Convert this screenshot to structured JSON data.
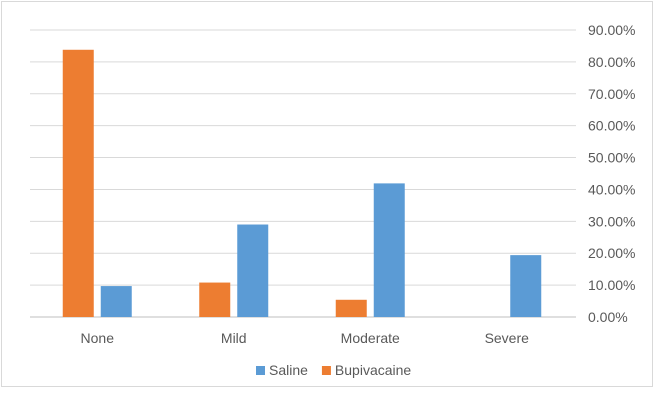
{
  "chart_data": {
    "type": "bar",
    "categories": [
      "None",
      "Mild",
      "Moderate",
      "Severe"
    ],
    "series": [
      {
        "name": "Saline",
        "color": "#5b9bd5",
        "values": [
          9.7,
          29.0,
          41.9,
          19.4
        ]
      },
      {
        "name": "Bupivacaine",
        "color": "#ed7d31",
        "values": [
          83.8,
          10.8,
          5.4,
          0
        ]
      }
    ],
    "y_axis": {
      "position": "right",
      "min": 0,
      "max": 90,
      "step": 10,
      "tick_labels": [
        "0.00%",
        "10.00%",
        "20.00%",
        "30.00%",
        "40.00%",
        "50.00%",
        "60.00%",
        "70.00%",
        "80.00%",
        "90.00%"
      ]
    },
    "grid": true,
    "legend": {
      "position": "bottom"
    },
    "title": "",
    "xlabel": "",
    "ylabel": ""
  }
}
